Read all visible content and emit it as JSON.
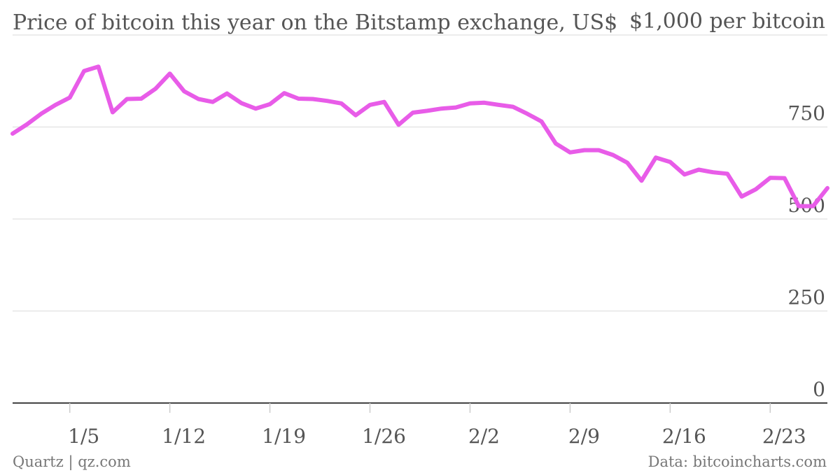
{
  "chart_data": {
    "type": "line",
    "title": "Price of bitcoin this year on the Bitstamp exchange, US$",
    "unit_note": "$1,000 per bitcoin",
    "source_left": "Quartz | qz.com",
    "source_right": "Data: bitcoincharts.com",
    "ylim": [
      0,
      1000
    ],
    "yticks": [
      {
        "value": 0,
        "label": "0"
      },
      {
        "value": 250,
        "label": "250"
      },
      {
        "value": 500,
        "label": "500"
      },
      {
        "value": 750,
        "label": "750"
      },
      {
        "value": 1000,
        "label": "$1,000 per bitcoin"
      }
    ],
    "xlim": [
      "2014-01-01",
      "2014-02-27"
    ],
    "xticks": [
      {
        "date": "2014-01-05",
        "label": "1/5"
      },
      {
        "date": "2014-01-12",
        "label": "1/12"
      },
      {
        "date": "2014-01-19",
        "label": "1/19"
      },
      {
        "date": "2014-01-26",
        "label": "1/26"
      },
      {
        "date": "2014-02-02",
        "label": "2/2"
      },
      {
        "date": "2014-02-09",
        "label": "2/9"
      },
      {
        "date": "2014-02-16",
        "label": "2/16"
      },
      {
        "date": "2014-02-23",
        "label": "2/23"
      }
    ],
    "line_color": "#e85ce8",
    "grid_color": "#e6e6e6",
    "axis_color": "#444444",
    "grid": true,
    "series": [
      {
        "x": [
          "2014-01-01",
          "2014-01-02",
          "2014-01-03",
          "2014-01-04",
          "2014-01-05",
          "2014-01-06",
          "2014-01-07",
          "2014-01-08",
          "2014-01-09",
          "2014-01-10",
          "2014-01-11",
          "2014-01-12",
          "2014-01-13",
          "2014-01-14",
          "2014-01-15",
          "2014-01-16",
          "2014-01-17",
          "2014-01-18",
          "2014-01-19",
          "2014-01-20",
          "2014-01-21",
          "2014-01-22",
          "2014-01-23",
          "2014-01-24",
          "2014-01-25",
          "2014-01-26",
          "2014-01-27",
          "2014-01-28",
          "2014-01-29",
          "2014-01-30",
          "2014-01-31",
          "2014-02-01",
          "2014-02-02",
          "2014-02-03",
          "2014-02-04",
          "2014-02-05",
          "2014-02-06",
          "2014-02-07",
          "2014-02-08",
          "2014-02-09",
          "2014-02-10",
          "2014-02-11",
          "2014-02-12",
          "2014-02-13",
          "2014-02-14",
          "2014-02-15",
          "2014-02-16",
          "2014-02-17",
          "2014-02-18",
          "2014-02-19",
          "2014-02-20",
          "2014-02-21",
          "2014-02-22",
          "2014-02-23",
          "2014-02-24",
          "2014-02-25",
          "2014-02-26",
          "2014-02-27"
        ],
        "values": [
          732,
          757,
          786,
          810,
          830,
          902,
          914,
          790,
          826,
          827,
          854,
          895,
          847,
          826,
          818,
          841,
          815,
          800,
          812,
          842,
          827,
          826,
          821,
          814,
          782,
          810,
          818,
          756,
          789,
          794,
          800,
          803,
          814,
          816,
          810,
          805,
          786,
          765,
          705,
          681,
          687,
          687,
          674,
          653,
          604,
          667,
          655,
          621,
          634,
          627,
          623,
          561,
          581,
          612,
          611,
          535,
          535,
          584
        ]
      }
    ]
  }
}
